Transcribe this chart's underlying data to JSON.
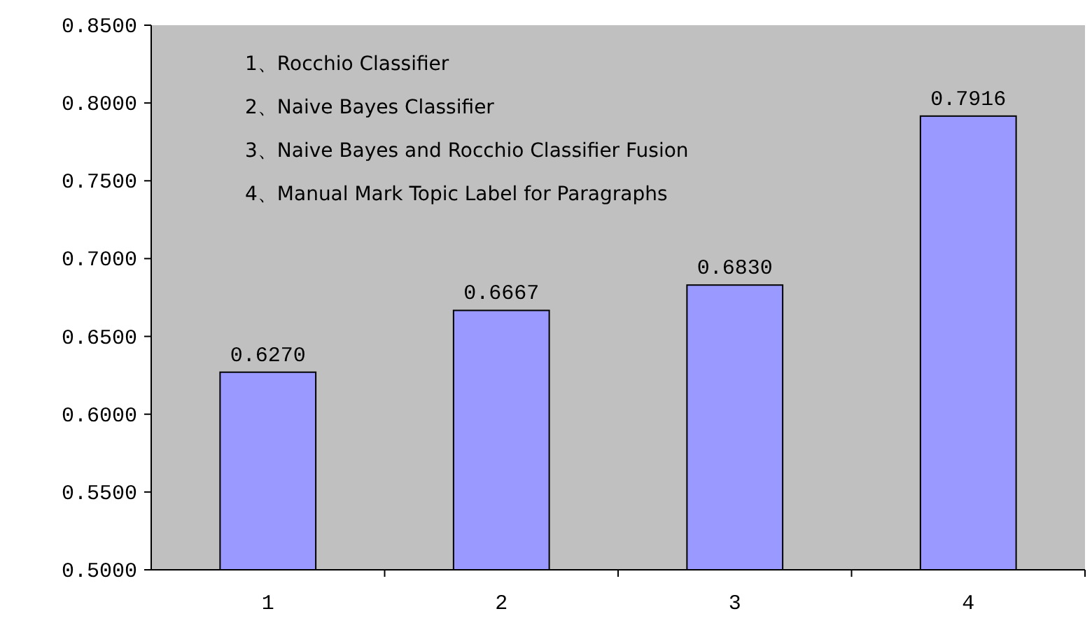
{
  "chart_data": {
    "type": "bar",
    "categories": [
      "1",
      "2",
      "3",
      "4"
    ],
    "values": [
      0.627,
      0.6667,
      0.683,
      0.7916
    ],
    "value_labels": [
      "0.6270",
      "0.6667",
      "0.6830",
      "0.7916"
    ],
    "color": "#9999ff",
    "ylim": [
      0.5,
      0.85
    ],
    "yticks": [
      {
        "value": 0.5,
        "label": "0.5000"
      },
      {
        "value": 0.55,
        "label": "0.5500"
      },
      {
        "value": 0.6,
        "label": "0.6000"
      },
      {
        "value": 0.65,
        "label": "0.6500"
      },
      {
        "value": 0.7,
        "label": "0.7000"
      },
      {
        "value": 0.75,
        "label": "0.7500"
      },
      {
        "value": 0.8,
        "label": "0.8000"
      },
      {
        "value": 0.85,
        "label": "0.8500"
      }
    ],
    "annotations": [
      "1、Rocchio Classifier",
      "2、Naive Bayes Classifier",
      "3、Naive Bayes and Rocchio Classifier Fusion",
      "4、Manual Mark Topic Label for Paragraphs"
    ],
    "grid": false
  }
}
